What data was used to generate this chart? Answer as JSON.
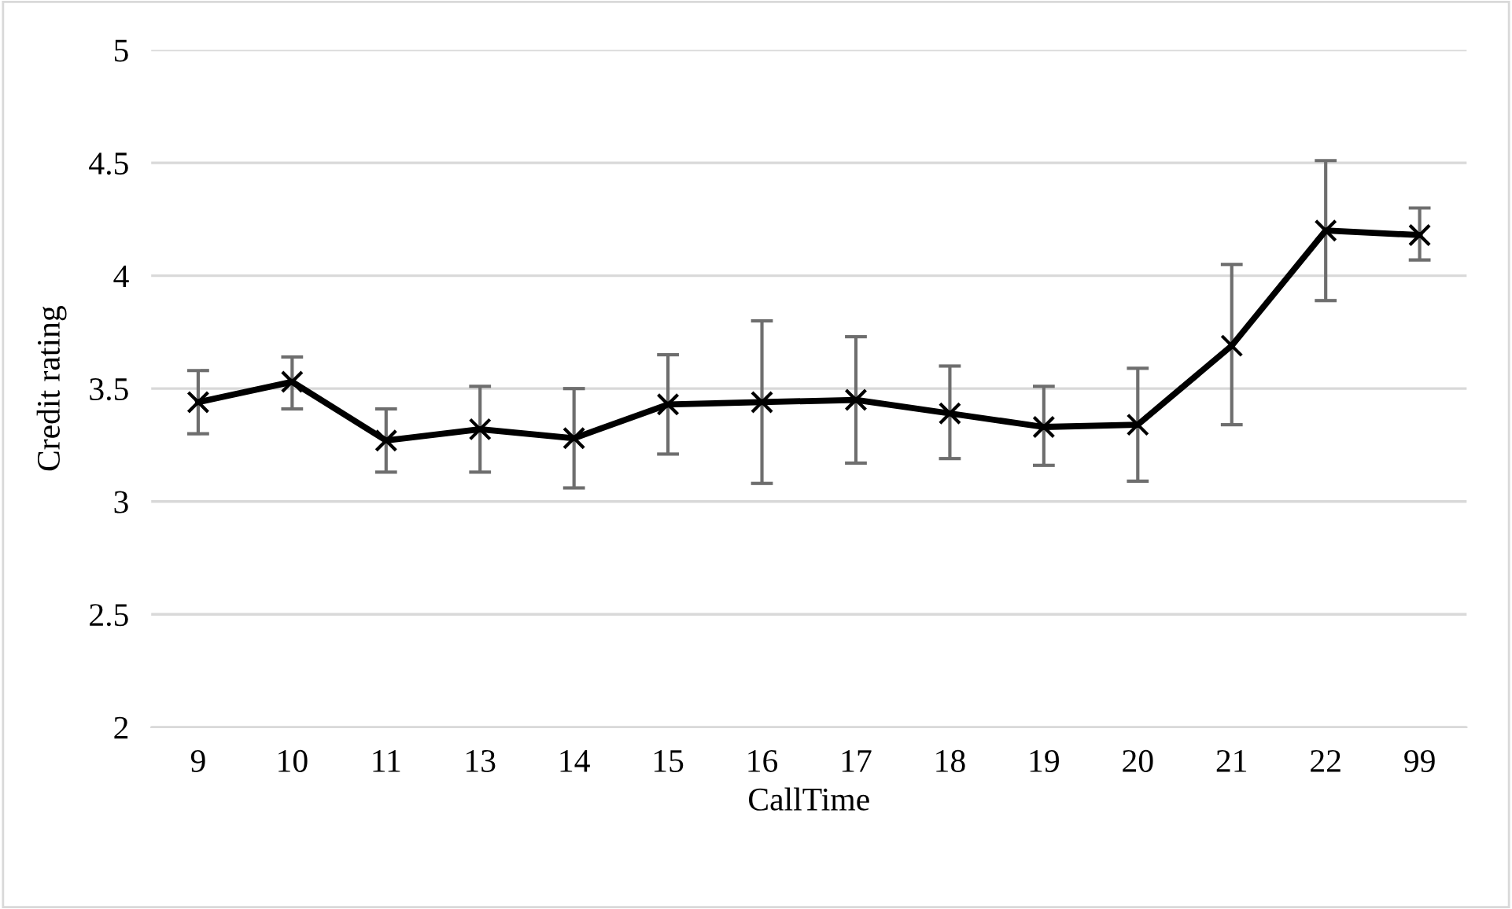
{
  "chart_data": {
    "type": "line",
    "xlabel": "CallTime",
    "ylabel": "Credit rating",
    "categories": [
      "9",
      "10",
      "11",
      "13",
      "14",
      "15",
      "16",
      "17",
      "18",
      "19",
      "20",
      "21",
      "22",
      "99"
    ],
    "series": [
      {
        "color": "#000000",
        "values": [
          3.44,
          3.53,
          3.27,
          3.32,
          3.28,
          3.43,
          3.44,
          3.45,
          3.39,
          3.33,
          3.34,
          3.69,
          4.2,
          4.18
        ],
        "errors": [
          [
            3.3,
            3.58
          ],
          [
            3.41,
            3.64
          ],
          [
            3.13,
            3.41
          ],
          [
            3.13,
            3.51
          ],
          [
            3.06,
            3.5
          ],
          [
            3.21,
            3.65
          ],
          [
            3.08,
            3.8
          ],
          [
            3.17,
            3.73
          ],
          [
            3.19,
            3.6
          ],
          [
            3.16,
            3.51
          ],
          [
            3.09,
            3.59
          ],
          [
            3.34,
            4.05
          ],
          [
            3.89,
            4.51
          ],
          [
            4.07,
            4.3
          ]
        ]
      }
    ],
    "ylim": [
      2,
      5
    ],
    "yticks": [
      2,
      2.5,
      3,
      3.5,
      4,
      4.5,
      5
    ],
    "grid": "y",
    "marker": "cross",
    "line_style": "solid",
    "legend": false
  }
}
